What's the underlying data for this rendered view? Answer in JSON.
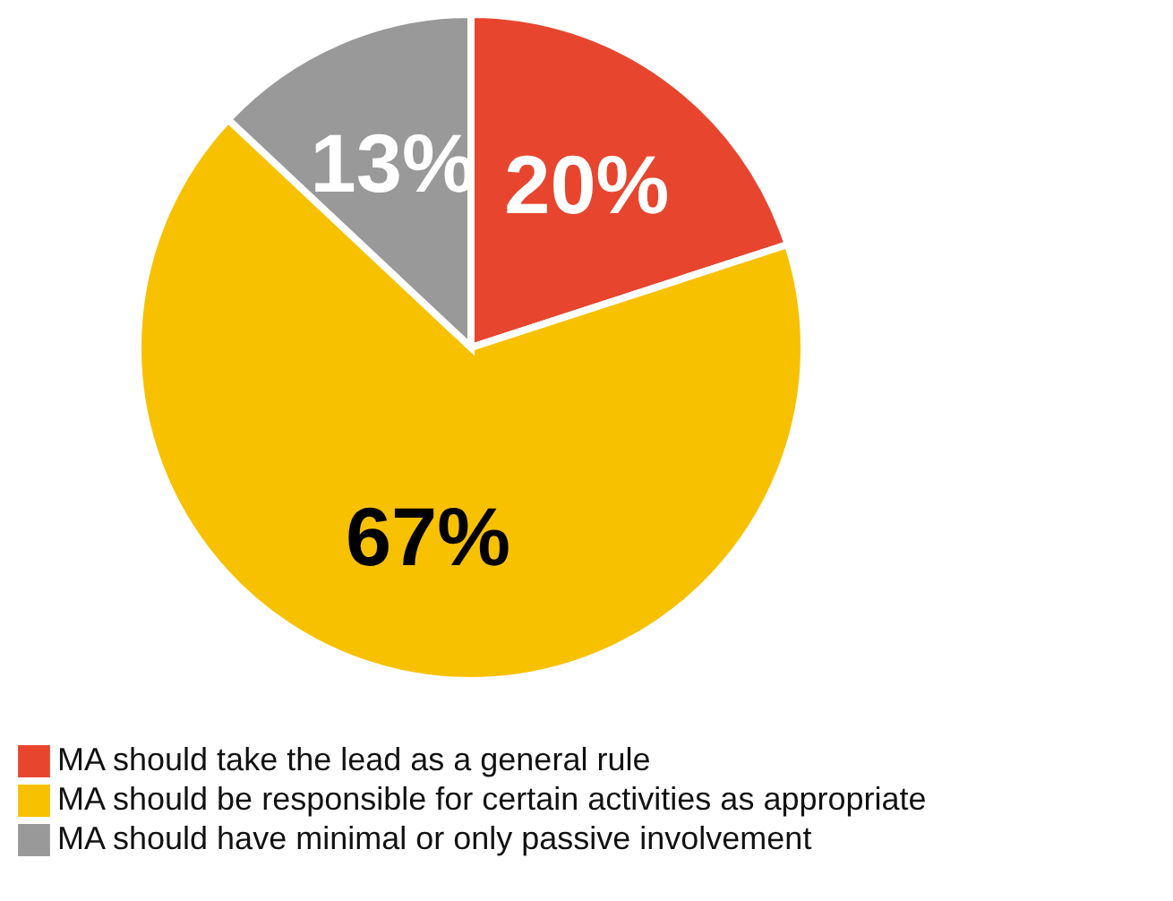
{
  "chart_data": {
    "type": "pie",
    "categories": [
      "MA should take the lead as a general rule",
      "MA should be responsible for certain activities as appropriate",
      "MA should have minimal or only passive involvement"
    ],
    "values": [
      20,
      67,
      13
    ],
    "colors": [
      "#e8452f",
      "#f8c100",
      "#999999"
    ],
    "value_labels": [
      "20%",
      "67%",
      "13%"
    ],
    "legend": "bottom"
  }
}
